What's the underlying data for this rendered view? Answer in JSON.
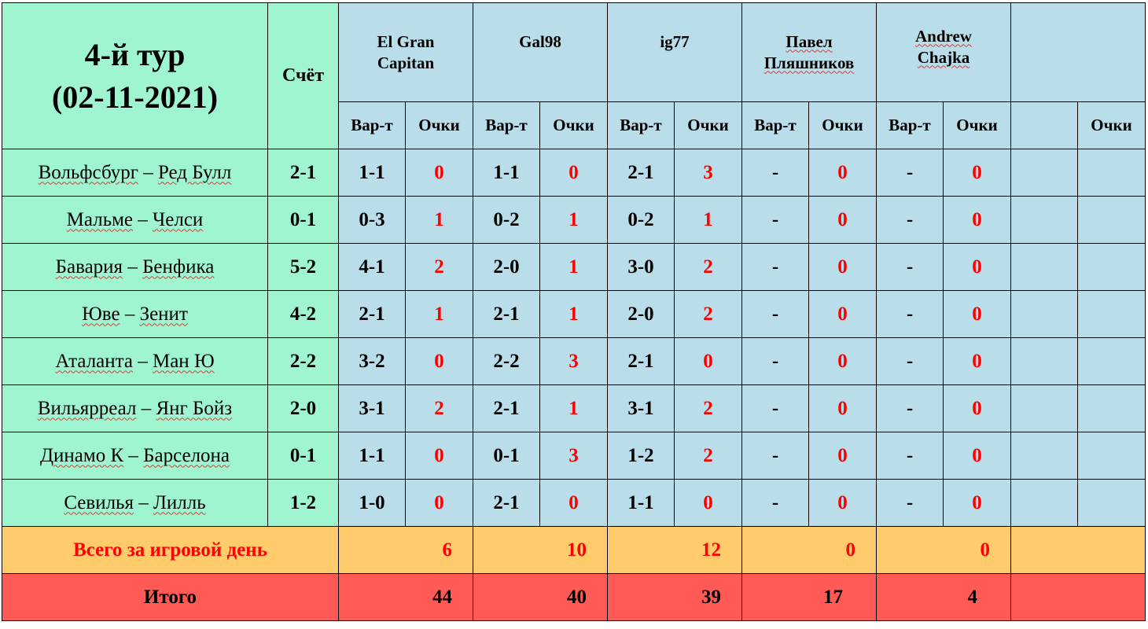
{
  "title": {
    "line1": "4-й тур",
    "line2": "(02-11-2021)"
  },
  "score_header": "Счёт",
  "sub_headers": {
    "pick": "Вар-т",
    "points": "Очки"
  },
  "players": [
    {
      "name_line1": "El Gran",
      "name_line2": "Capitan"
    },
    {
      "name_line1": "Gal98",
      "name_line2": ""
    },
    {
      "name_line1": "ig77",
      "name_line2": ""
    },
    {
      "name_line1": "Павел",
      "name_line2": "Пляшников"
    },
    {
      "name_line1": "Andrew",
      "name_line2": "Chajka"
    }
  ],
  "matches": [
    {
      "home": "Вольфсбург",
      "dash": " – ",
      "away": "Ред Булл",
      "score": "2-1",
      "picks": [
        {
          "pick": "1-1",
          "pts": "0"
        },
        {
          "pick": "1-1",
          "pts": "0"
        },
        {
          "pick": "2-1",
          "pts": "3"
        },
        {
          "pick": "-",
          "pts": "0"
        },
        {
          "pick": "-",
          "pts": "0"
        }
      ]
    },
    {
      "home": "Мальме",
      "dash": " – ",
      "away": "Челси",
      "score": "0-1",
      "picks": [
        {
          "pick": "0-3",
          "pts": "1"
        },
        {
          "pick": "0-2",
          "pts": "1"
        },
        {
          "pick": "0-2",
          "pts": "1"
        },
        {
          "pick": "-",
          "pts": "0"
        },
        {
          "pick": "-",
          "pts": "0"
        }
      ]
    },
    {
      "home": "Бавария",
      "dash": " – ",
      "away": "Бенфика",
      "score": "5-2",
      "picks": [
        {
          "pick": "4-1",
          "pts": "2"
        },
        {
          "pick": "2-0",
          "pts": "1"
        },
        {
          "pick": "3-0",
          "pts": "2"
        },
        {
          "pick": "-",
          "pts": "0"
        },
        {
          "pick": "-",
          "pts": "0"
        }
      ]
    },
    {
      "home": "Юве",
      "dash": " – ",
      "away": "Зенит",
      "score": "4-2",
      "picks": [
        {
          "pick": "2-1",
          "pts": "1"
        },
        {
          "pick": "2-1",
          "pts": "1"
        },
        {
          "pick": "2-0",
          "pts": "2"
        },
        {
          "pick": "-",
          "pts": "0"
        },
        {
          "pick": "-",
          "pts": "0"
        }
      ]
    },
    {
      "home": "Аталанта",
      "dash": " – ",
      "away": "Ман Ю",
      "score": "2-2",
      "picks": [
        {
          "pick": "3-2",
          "pts": "0"
        },
        {
          "pick": "2-2",
          "pts": "3"
        },
        {
          "pick": "2-1",
          "pts": "0"
        },
        {
          "pick": "-",
          "pts": "0"
        },
        {
          "pick": "-",
          "pts": "0"
        }
      ]
    },
    {
      "home": "Вильярреал",
      "dash": " – ",
      "away": "Янг Бойз",
      "score": "2-0",
      "picks": [
        {
          "pick": "3-1",
          "pts": "2"
        },
        {
          "pick": "2-1",
          "pts": "1"
        },
        {
          "pick": "3-1",
          "pts": "2"
        },
        {
          "pick": "-",
          "pts": "0"
        },
        {
          "pick": "-",
          "pts": "0"
        }
      ]
    },
    {
      "home": "Динамо К",
      "dash": " – ",
      "away": "Барселона",
      "score": "0-1",
      "picks": [
        {
          "pick": "1-1",
          "pts": "0"
        },
        {
          "pick": "0-1",
          "pts": "3"
        },
        {
          "pick": "1-2",
          "pts": "2"
        },
        {
          "pick": "-",
          "pts": "0"
        },
        {
          "pick": "-",
          "pts": "0"
        }
      ]
    },
    {
      "home": "Севилья",
      "dash": " – ",
      "away": "Лилль",
      "score": "1-2",
      "picks": [
        {
          "pick": "1-0",
          "pts": "0"
        },
        {
          "pick": "2-1",
          "pts": "0"
        },
        {
          "pick": "1-1",
          "pts": "0"
        },
        {
          "pick": "-",
          "pts": "0"
        },
        {
          "pick": "-",
          "pts": "0"
        }
      ]
    }
  ],
  "day_total": {
    "label": "Всего за игровой день",
    "values": [
      "6",
      "10",
      "12",
      "0",
      "0"
    ]
  },
  "grand_total": {
    "label": "Итого",
    "values": [
      "44",
      "40",
      "39",
      "17",
      "4"
    ]
  },
  "colors": {
    "header_green": "#9ff5cf",
    "player_blue": "#b9dde9",
    "day_total_orange": "#ffcb6b",
    "grand_total_red": "#ff5a55",
    "points_red": "#ff0000"
  }
}
